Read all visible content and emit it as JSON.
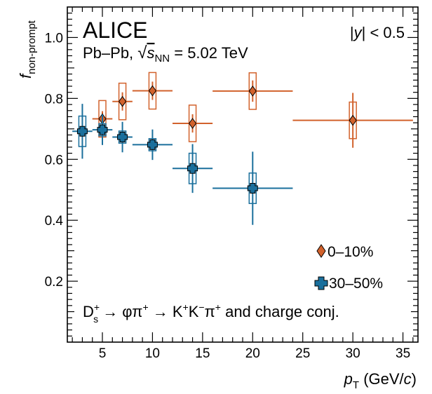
{
  "chart_data": {
    "type": "scatter",
    "title": "ALICE",
    "subtitle": "Pb–Pb, √s_NN = 5.02 TeV",
    "rapidity_label": "|y| < 0.5",
    "xlabel": "p_T (GeV/c)",
    "ylabel": "f_non-prompt",
    "xlim": [
      1.5,
      36.5
    ],
    "ylim": [
      0.0,
      1.1
    ],
    "x_ticks": [
      5,
      10,
      15,
      20,
      25,
      30,
      35
    ],
    "y_ticks": [
      0.2,
      0.4,
      0.6,
      0.8,
      1.0
    ],
    "decay_annotation": "Ds+ → φπ+ → K+K−π+ and charge conj.",
    "legend_position": "bottom-right",
    "series": [
      {
        "name": "0–10%",
        "color": "#d2622c",
        "marker": "diamond",
        "points": [
          {
            "x": 5,
            "xlo": 4,
            "xhi": 6,
            "y": 0.733,
            "stat": 0.025,
            "sys": 0.06
          },
          {
            "x": 7,
            "xlo": 6,
            "xhi": 8,
            "y": 0.79,
            "stat": 0.03,
            "sys": 0.06
          },
          {
            "x": 10,
            "xlo": 8,
            "xhi": 12,
            "y": 0.825,
            "stat": 0.03,
            "sys": 0.06
          },
          {
            "x": 14,
            "xlo": 12,
            "xhi": 16,
            "y": 0.718,
            "stat": 0.03,
            "sys": 0.06
          },
          {
            "x": 20,
            "xlo": 16,
            "xhi": 24,
            "y": 0.824,
            "stat": 0.035,
            "sys": 0.06
          },
          {
            "x": 30,
            "xlo": 24,
            "xhi": 36,
            "y": 0.728,
            "stat": 0.09,
            "sys": 0.06
          }
        ]
      },
      {
        "name": "30–50%",
        "color": "#1a6f9c",
        "marker": "cross",
        "points": [
          {
            "x": 3,
            "xlo": 2,
            "xhi": 4,
            "y": 0.692,
            "stat": 0.09,
            "sys": 0.05
          },
          {
            "x": 5,
            "xlo": 4,
            "xhi": 6,
            "y": 0.697,
            "stat": 0.05,
            "sys": 0.02
          },
          {
            "x": 7,
            "xlo": 6,
            "xhi": 8,
            "y": 0.673,
            "stat": 0.05,
            "sys": 0.02
          },
          {
            "x": 10,
            "xlo": 8,
            "xhi": 12,
            "y": 0.648,
            "stat": 0.05,
            "sys": 0.02
          },
          {
            "x": 14,
            "xlo": 12,
            "xhi": 16,
            "y": 0.57,
            "stat": 0.08,
            "sys": 0.05
          },
          {
            "x": 20,
            "xlo": 16,
            "xhi": 24,
            "y": 0.505,
            "stat": 0.12,
            "sys": 0.05
          }
        ]
      }
    ]
  }
}
